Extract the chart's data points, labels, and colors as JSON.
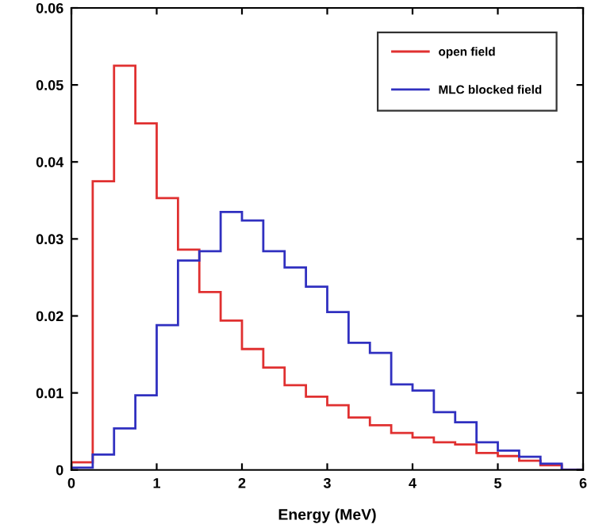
{
  "chart_data": {
    "type": "histogram",
    "xlabel": "Energy (MeV)",
    "bins": [
      0,
      0.25,
      0.5,
      0.75,
      1,
      1.25,
      1.5,
      1.75,
      2,
      2.25,
      2.5,
      2.75,
      3,
      3.25,
      3.5,
      3.75,
      4,
      4.25,
      4.5,
      4.75,
      5,
      5.25,
      5.5,
      5.75,
      6
    ],
    "series": [
      {
        "name": "open field",
        "color": "#e03030",
        "values": [
          0.001,
          0.0375,
          0.0525,
          0.045,
          0.0353,
          0.0286,
          0.0231,
          0.0194,
          0.0157,
          0.0133,
          0.011,
          0.0095,
          0.0084,
          0.0068,
          0.0058,
          0.0048,
          0.0042,
          0.0036,
          0.0033,
          0.0022,
          0.0018,
          0.0012,
          0.0006,
          0
        ]
      },
      {
        "name": "MLC blocked field",
        "color": "#3030c0",
        "values": [
          0.0003,
          0.002,
          0.0054,
          0.0097,
          0.0188,
          0.0272,
          0.0284,
          0.0335,
          0.0324,
          0.0284,
          0.0263,
          0.0238,
          0.0205,
          0.0165,
          0.0152,
          0.0111,
          0.0103,
          0.0075,
          0.0062,
          0.0036,
          0.0025,
          0.0017,
          0.0008,
          0
        ]
      }
    ],
    "xlim": [
      0,
      6
    ],
    "ylim": [
      0,
      0.06
    ],
    "xticks": [
      0,
      1,
      2,
      3,
      4,
      5,
      6
    ],
    "yticks": [
      0,
      0.01,
      0.02,
      0.03,
      0.04,
      0.05,
      0.06
    ],
    "legend": "top right",
    "grid": false
  }
}
